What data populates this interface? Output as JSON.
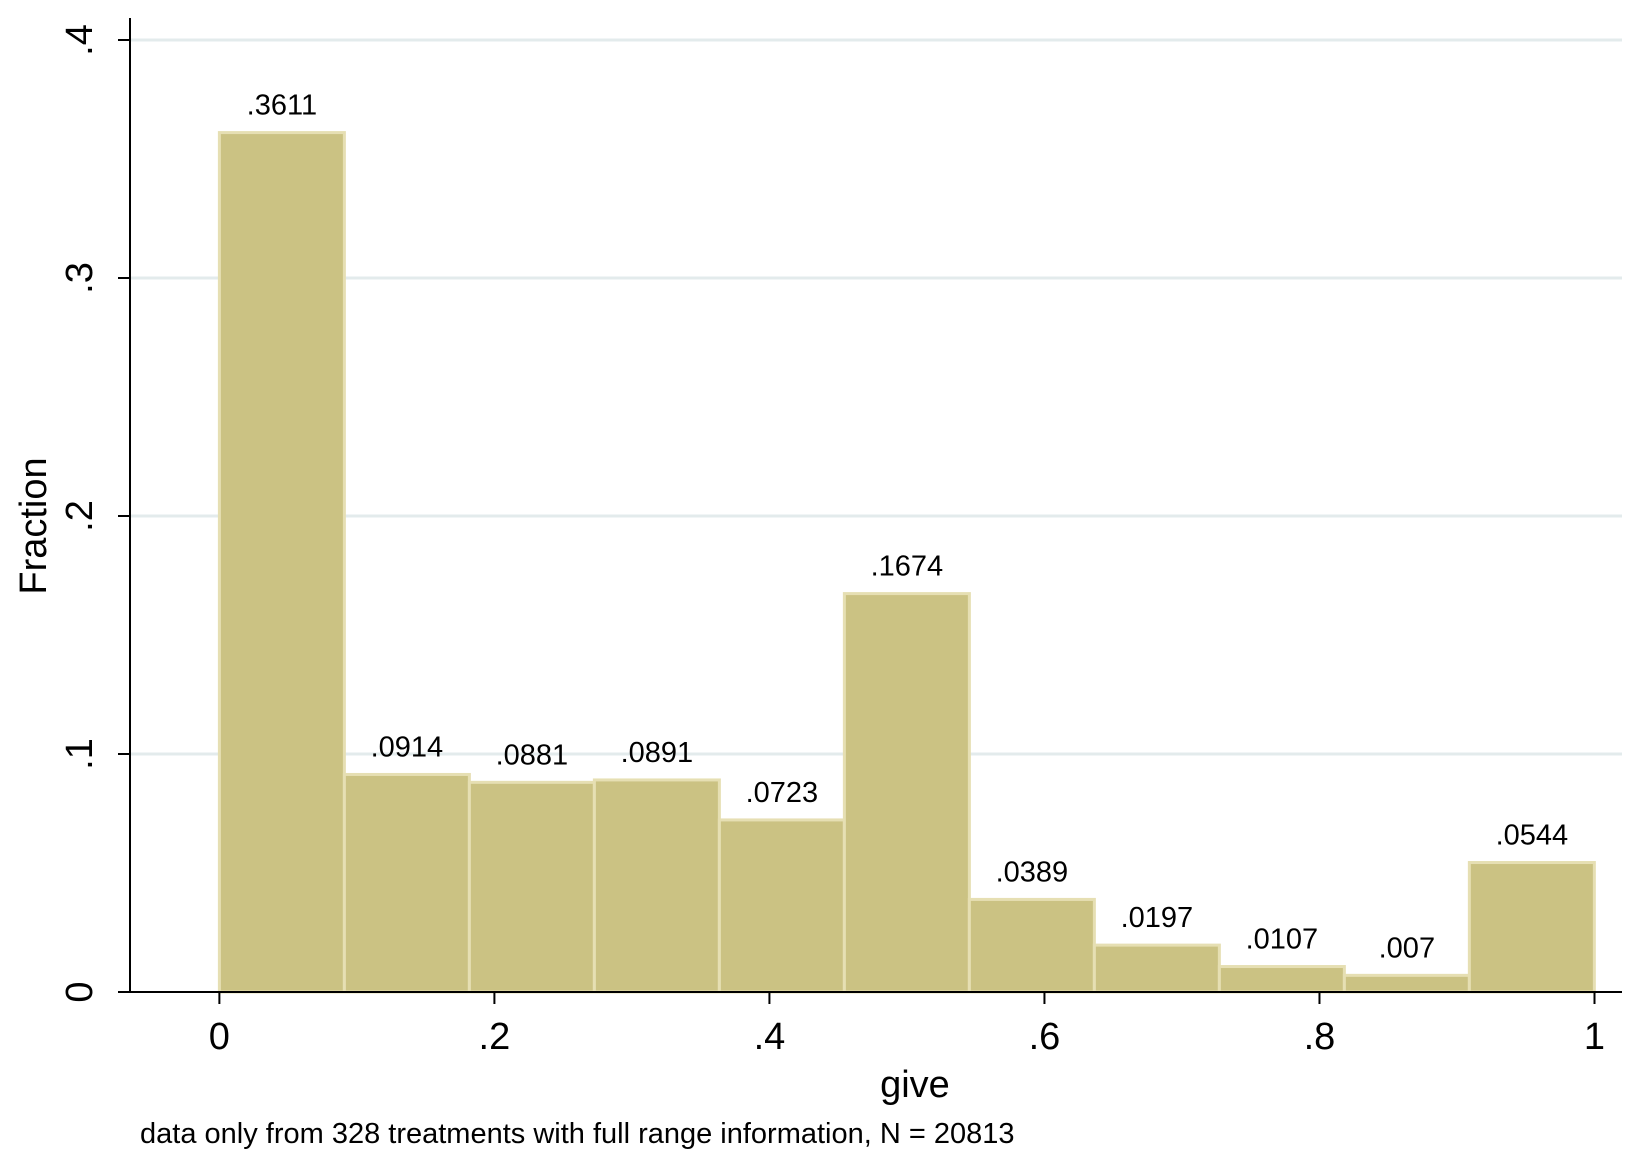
{
  "chart_data": {
    "type": "bar",
    "subtype": "histogram",
    "xlabel": "give",
    "ylabel": "Fraction",
    "note": "data only from 328 treatments with full range information, N = 20813",
    "bin_start": 0,
    "bin_width": 0.0909,
    "values": [
      0.3611,
      0.0914,
      0.0881,
      0.0891,
      0.0723,
      0.1674,
      0.0389,
      0.0197,
      0.0107,
      0.007,
      0.0544
    ],
    "value_labels": [
      ".3611",
      ".0914",
      ".0881",
      ".0891",
      ".0723",
      ".1674",
      ".0389",
      ".0197",
      ".0107",
      ".007",
      ".0544"
    ],
    "x_ticks": [
      0,
      0.2,
      0.4,
      0.6,
      0.8,
      1
    ],
    "x_tick_labels": [
      "0",
      ".2",
      ".4",
      ".6",
      ".8",
      "1"
    ],
    "y_ticks": [
      0,
      0.1,
      0.2,
      0.3,
      0.4
    ],
    "y_tick_labels": [
      "0",
      ".1",
      ".2",
      ".3",
      ".4"
    ],
    "xlim": [
      -0.065,
      1.02
    ],
    "ylim": [
      0,
      0.4
    ],
    "grid": true,
    "legend": "none",
    "colors": {
      "bar_fill": "#cbc283",
      "bar_stroke": "#e6dfb3",
      "grid": "#e3ebec",
      "axis": "#000000"
    }
  }
}
